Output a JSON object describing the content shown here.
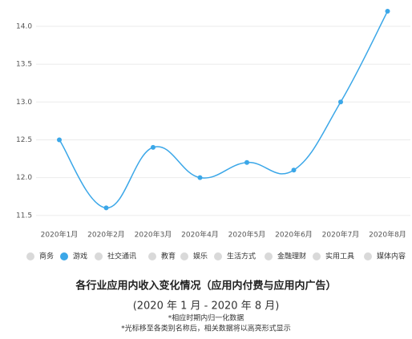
{
  "chart_data": {
    "type": "line",
    "title": "各行业应用内收入变化情况（应用内付费与应用内广告）",
    "subtitle": "(2020 年 1 月 - 2020 年 8 月)",
    "notes": [
      "*相应时期内归一化数据",
      "*光标移至各类别名称后，相关数据将以高亮形式显示"
    ],
    "categories": [
      "2020年1月",
      "2020年2月",
      "2020年3月",
      "2020年4月",
      "2020年5月",
      "2020年6月",
      "2020年7月",
      "2020年8月"
    ],
    "series": [
      {
        "name": "商务",
        "color": "#d9d9d9",
        "visible": false
      },
      {
        "name": "游戏",
        "color": "#3ba7e8",
        "visible": true,
        "values": [
          12.5,
          11.6,
          12.4,
          12.0,
          12.2,
          12.1,
          13.0,
          14.2
        ]
      },
      {
        "name": "社交通讯",
        "color": "#d9d9d9",
        "visible": false
      },
      {
        "name": "教育",
        "color": "#d9d9d9",
        "visible": false
      },
      {
        "name": "娱乐",
        "color": "#d9d9d9",
        "visible": false
      },
      {
        "name": "生活方式",
        "color": "#d9d9d9",
        "visible": false
      },
      {
        "name": "金融理财",
        "color": "#d9d9d9",
        "visible": false
      },
      {
        "name": "实用工具",
        "color": "#d9d9d9",
        "visible": false
      },
      {
        "name": "媒体内容",
        "color": "#d9d9d9",
        "visible": false
      }
    ],
    "ylim": [
      11.35,
      14.2
    ],
    "yticks": [
      11.5,
      {
        "value": 12,
        "label": "12.0"
      },
      12.5,
      {
        "value": 13,
        "label": "13.0"
      },
      13.5,
      {
        "value": 14,
        "label": "14.0"
      }
    ],
    "grid": true
  }
}
